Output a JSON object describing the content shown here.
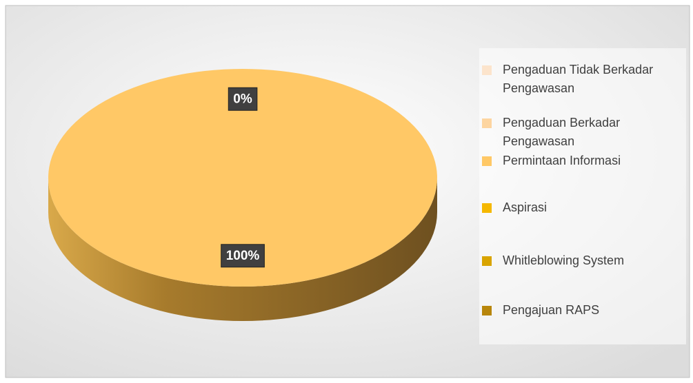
{
  "chart_data": {
    "type": "pie",
    "categories": [
      "Pengaduan Tidak Berkadar Pengawasan",
      "Pengaduan Berkadar Pengawasan",
      "Permintaan Informasi",
      "Aspirasi",
      "Whitleblowing System",
      "Pengajuan RAPS"
    ],
    "values": [
      0,
      0,
      100,
      0,
      0,
      0
    ],
    "value_labels": [
      null,
      "0%",
      "100%",
      null,
      null,
      null
    ],
    "colors": [
      "#fce4cc",
      "#fdd5a0",
      "#ffc866",
      "#f5b800",
      "#d9a400",
      "#b8860b"
    ],
    "legend": "right"
  }
}
